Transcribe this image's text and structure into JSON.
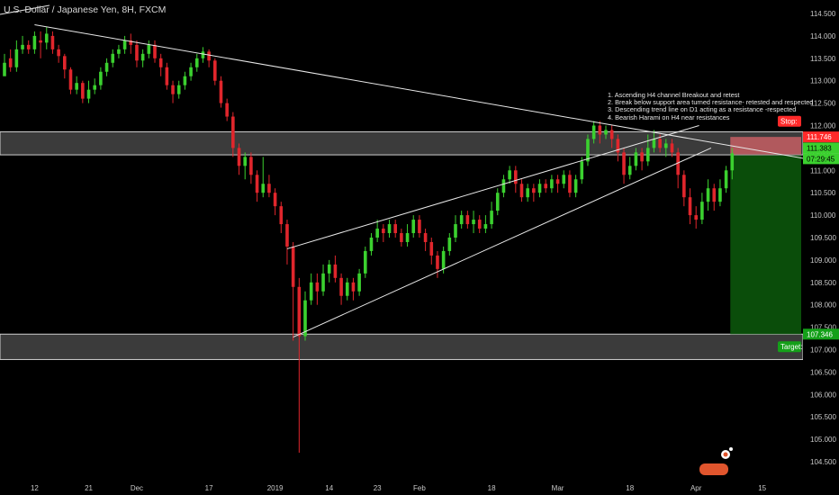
{
  "title": "U.S. Dollar / Japanese Yen, 8H, FXCM",
  "annotations": [
    "1. Ascending H4 channel Breakout and retest",
    "2. Break below support area turned resistance- retested and respected",
    "3. Descending trend line on D1 acting as a resistance -respected",
    "4. Bearish Harami on H4 near resistances"
  ],
  "colors": {
    "up": "#3bd12f",
    "down": "#e0262c",
    "zone": "#6b6b6b",
    "stop_zone": "#d9646a",
    "target_zone": "#0c5b0c",
    "grid_text": "#c8c8c8",
    "trendline": "#e8e8e8",
    "stop_tag": "#ff2a2a",
    "target_tag": "#14a019"
  },
  "logo_label": "tradingview-logo",
  "chart_data": {
    "type": "candlestick",
    "x_tick_labels": [
      "12",
      "21",
      "Dec",
      "17",
      "2019",
      "14",
      "23",
      "Feb",
      "18",
      "Mar",
      "18",
      "Apr",
      "15"
    ],
    "y_ticks": [
      104.5,
      105.0,
      105.5,
      106.0,
      106.5,
      107.0,
      107.5,
      108.0,
      108.5,
      109.0,
      109.5,
      110.0,
      110.5,
      111.0,
      111.5,
      112.0,
      112.5,
      113.0,
      113.5,
      114.0,
      114.5
    ],
    "y_tick_labels": [
      "104.500",
      "105.000",
      "105.500",
      "106.000",
      "106.500",
      "107.000",
      "107.500",
      "108.000",
      "108.500",
      "109.000",
      "109.500",
      "110.000",
      "110.500",
      "111.000",
      "111.500",
      "112.000",
      "112.500",
      "113.000",
      "113.500",
      "114.000",
      "114.500"
    ],
    "ylim": [
      104.2,
      114.75
    ],
    "zones": [
      {
        "name": "resistance",
        "low": 111.346,
        "high": 111.86
      },
      {
        "name": "support",
        "low": 106.78,
        "high": 107.346
      }
    ],
    "trade": {
      "stop_label": "Stop:",
      "stop_value": "111.746",
      "stop": 111.746,
      "entry_value": "111.346",
      "entry": 111.346,
      "target_label": "Target:",
      "target_value": "107.346",
      "target": 107.346,
      "current_price": "111.383",
      "countdown": "07:29:45"
    },
    "candles": [
      [
        113.1,
        113.4,
        113.2,
        113.6
      ],
      [
        113.5,
        113.3,
        113.2,
        113.7
      ],
      [
        113.3,
        113.7,
        113.2,
        113.9
      ],
      [
        113.7,
        113.8,
        113.6,
        114.0
      ],
      [
        113.8,
        113.7,
        113.6,
        113.9
      ],
      [
        113.7,
        114.0,
        113.6,
        114.1
      ],
      [
        113.9,
        113.85,
        113.5,
        114.1
      ],
      [
        113.85,
        114.05,
        113.7,
        114.2
      ],
      [
        114.0,
        113.7,
        113.6,
        114.1
      ],
      [
        113.7,
        113.55,
        113.4,
        113.8
      ],
      [
        113.55,
        113.25,
        113.05,
        113.6
      ],
      [
        113.25,
        112.8,
        112.7,
        113.3
      ],
      [
        112.8,
        112.95,
        112.7,
        113.1
      ],
      [
        112.95,
        112.6,
        112.5,
        113.0
      ],
      [
        112.6,
        112.8,
        112.5,
        113.0
      ],
      [
        112.8,
        112.9,
        112.7,
        113.05
      ],
      [
        112.9,
        113.2,
        112.8,
        113.3
      ],
      [
        113.2,
        113.4,
        113.1,
        113.5
      ],
      [
        113.4,
        113.6,
        113.3,
        113.7
      ],
      [
        113.6,
        113.7,
        113.5,
        113.8
      ],
      [
        113.7,
        113.9,
        113.6,
        114.0
      ],
      [
        113.9,
        113.8,
        113.6,
        114.05
      ],
      [
        113.8,
        113.45,
        113.3,
        113.9
      ],
      [
        113.45,
        113.6,
        113.3,
        113.7
      ],
      [
        113.6,
        113.8,
        113.5,
        113.9
      ],
      [
        113.8,
        113.5,
        113.4,
        113.9
      ],
      [
        113.5,
        113.3,
        113.1,
        113.6
      ],
      [
        113.3,
        112.9,
        112.8,
        113.4
      ],
      [
        112.9,
        112.7,
        112.5,
        113.0
      ],
      [
        112.7,
        112.9,
        112.6,
        113.0
      ],
      [
        112.9,
        113.1,
        112.8,
        113.2
      ],
      [
        113.1,
        113.3,
        113.0,
        113.4
      ],
      [
        113.3,
        113.5,
        113.2,
        113.6
      ],
      [
        113.5,
        113.65,
        113.4,
        113.75
      ],
      [
        113.65,
        113.45,
        113.3,
        113.7
      ],
      [
        113.45,
        113.0,
        112.9,
        113.5
      ],
      [
        113.0,
        112.5,
        112.4,
        113.1
      ],
      [
        112.5,
        112.2,
        112.1,
        112.6
      ],
      [
        112.2,
        111.5,
        111.3,
        112.3
      ],
      [
        111.5,
        111.1,
        110.9,
        111.6
      ],
      [
        111.1,
        111.3,
        110.8,
        111.4
      ],
      [
        111.3,
        110.9,
        110.7,
        111.4
      ],
      [
        110.9,
        110.5,
        110.3,
        111.0
      ],
      [
        110.5,
        110.7,
        110.4,
        111.3
      ],
      [
        110.7,
        110.5,
        110.4,
        110.9
      ],
      [
        110.5,
        110.2,
        110.0,
        110.6
      ],
      [
        110.2,
        109.8,
        109.6,
        110.3
      ],
      [
        109.8,
        109.3,
        108.9,
        109.9
      ],
      [
        109.3,
        108.4,
        107.2,
        109.4
      ],
      [
        108.4,
        107.3,
        104.7,
        108.6
      ],
      [
        107.3,
        108.1,
        107.2,
        108.3
      ],
      [
        108.1,
        108.5,
        108.0,
        108.7
      ],
      [
        108.5,
        108.3,
        108.0,
        108.7
      ],
      [
        108.3,
        108.7,
        108.2,
        108.9
      ],
      [
        108.7,
        108.9,
        108.5,
        109.0
      ],
      [
        108.9,
        108.6,
        108.5,
        109.1
      ],
      [
        108.6,
        108.2,
        108.0,
        108.7
      ],
      [
        108.2,
        108.5,
        108.1,
        108.6
      ],
      [
        108.5,
        108.3,
        108.1,
        108.6
      ],
      [
        108.3,
        108.7,
        108.2,
        108.8
      ],
      [
        108.7,
        109.2,
        108.6,
        109.3
      ],
      [
        109.2,
        109.5,
        109.1,
        109.6
      ],
      [
        109.5,
        109.7,
        109.4,
        109.9
      ],
      [
        109.7,
        109.6,
        109.4,
        109.8
      ],
      [
        109.6,
        109.8,
        109.5,
        109.9
      ],
      [
        109.8,
        109.6,
        109.5,
        109.9
      ],
      [
        109.6,
        109.4,
        109.3,
        109.7
      ],
      [
        109.4,
        109.6,
        109.3,
        109.8
      ],
      [
        109.6,
        109.9,
        109.5,
        110.0
      ],
      [
        109.9,
        109.6,
        109.5,
        110.0
      ],
      [
        109.6,
        109.4,
        109.2,
        109.7
      ],
      [
        109.4,
        109.1,
        108.9,
        109.5
      ],
      [
        109.1,
        108.8,
        108.6,
        109.2
      ],
      [
        108.8,
        109.2,
        108.7,
        109.3
      ],
      [
        109.2,
        109.5,
        109.1,
        109.6
      ],
      [
        109.5,
        109.8,
        109.4,
        110.0
      ],
      [
        109.8,
        110.0,
        109.7,
        110.1
      ],
      [
        110.0,
        109.8,
        109.7,
        110.1
      ],
      [
        109.8,
        109.9,
        109.6,
        110.1
      ],
      [
        109.9,
        109.7,
        109.6,
        110.0
      ],
      [
        109.7,
        109.8,
        109.6,
        110.0
      ],
      [
        109.8,
        110.1,
        109.7,
        110.3
      ],
      [
        110.1,
        110.5,
        110.0,
        110.6
      ],
      [
        110.5,
        110.8,
        110.4,
        110.9
      ],
      [
        110.8,
        111.0,
        110.7,
        111.1
      ],
      [
        111.0,
        110.7,
        110.5,
        111.1
      ],
      [
        110.7,
        110.4,
        110.3,
        110.8
      ],
      [
        110.4,
        110.6,
        110.3,
        110.7
      ],
      [
        110.6,
        110.5,
        110.3,
        110.7
      ],
      [
        110.5,
        110.7,
        110.4,
        110.8
      ],
      [
        110.7,
        110.6,
        110.5,
        110.8
      ],
      [
        110.6,
        110.8,
        110.5,
        110.9
      ],
      [
        110.8,
        110.7,
        110.5,
        110.9
      ],
      [
        110.7,
        110.9,
        110.6,
        111.0
      ],
      [
        110.9,
        110.5,
        110.4,
        111.0
      ],
      [
        110.5,
        110.8,
        110.4,
        110.9
      ],
      [
        110.8,
        111.2,
        110.7,
        111.3
      ],
      [
        111.2,
        111.7,
        111.1,
        111.8
      ],
      [
        111.7,
        112.0,
        111.6,
        112.1
      ],
      [
        112.0,
        111.8,
        111.6,
        112.1
      ],
      [
        111.8,
        111.9,
        111.7,
        112.0
      ],
      [
        111.9,
        111.7,
        111.5,
        112.0
      ],
      [
        111.7,
        111.4,
        111.2,
        111.8
      ],
      [
        111.4,
        110.9,
        110.7,
        111.5
      ],
      [
        110.9,
        111.1,
        110.8,
        111.3
      ],
      [
        111.1,
        111.4,
        111.0,
        111.5
      ],
      [
        111.4,
        111.2,
        111.0,
        111.5
      ],
      [
        111.2,
        111.5,
        111.1,
        111.8
      ],
      [
        111.5,
        111.7,
        111.4,
        111.9
      ],
      [
        111.7,
        111.5,
        111.4,
        111.8
      ],
      [
        111.5,
        111.6,
        111.3,
        111.7
      ],
      [
        111.6,
        111.4,
        111.3,
        111.7
      ],
      [
        111.4,
        110.9,
        110.6,
        111.5
      ],
      [
        110.9,
        110.4,
        110.2,
        111.0
      ],
      [
        110.4,
        110.0,
        109.8,
        110.6
      ],
      [
        110.0,
        109.9,
        109.7,
        110.2
      ],
      [
        109.9,
        110.3,
        109.8,
        110.5
      ],
      [
        110.3,
        110.6,
        110.1,
        110.8
      ],
      [
        110.6,
        110.3,
        110.1,
        110.7
      ],
      [
        110.3,
        110.6,
        110.2,
        110.8
      ],
      [
        110.6,
        111.0,
        110.5,
        111.1
      ],
      [
        111.0,
        111.38,
        110.8,
        111.5
      ]
    ]
  }
}
